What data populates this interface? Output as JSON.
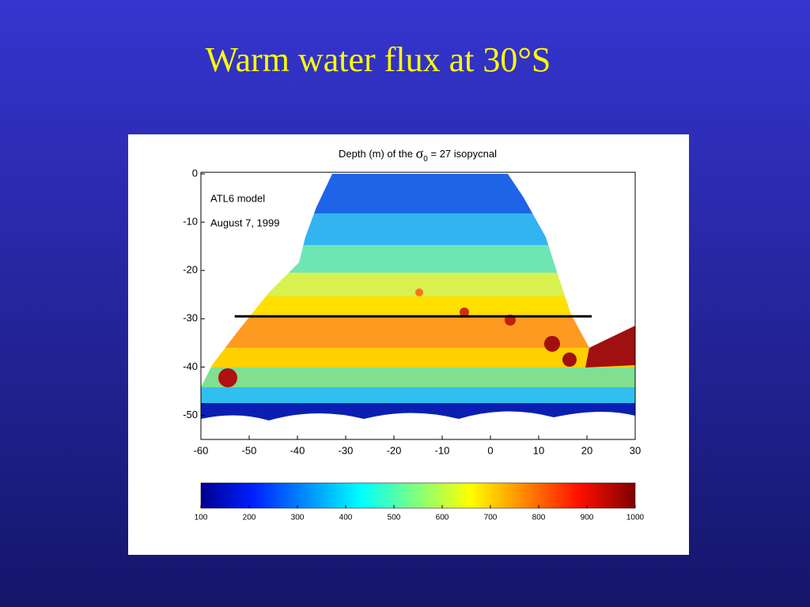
{
  "slide": {
    "title": "Warm water flux at 30°S"
  },
  "chart_data": {
    "type": "contour-map",
    "title": {
      "text": "Depth (m) of the",
      "symbol": "σ",
      "subscript": "0",
      "rest": "= 27 isopycnal"
    },
    "annotations": [
      "ATL6 model",
      "August 7, 1999"
    ],
    "xlim": [
      -60,
      30
    ],
    "xticks": [
      -60,
      -50,
      -40,
      -30,
      -20,
      -10,
      0,
      10,
      20,
      30
    ],
    "ylim": [
      -55,
      0
    ],
    "yticks": [
      0,
      -10,
      -20,
      -30,
      -40,
      -50
    ],
    "section": {
      "y": -29.5,
      "x": [
        -53,
        21
      ]
    },
    "colorbar": {
      "lim": [
        100,
        1000
      ],
      "ticks": [
        100,
        200,
        300,
        400,
        500,
        600,
        700,
        800,
        900,
        1000
      ]
    }
  }
}
